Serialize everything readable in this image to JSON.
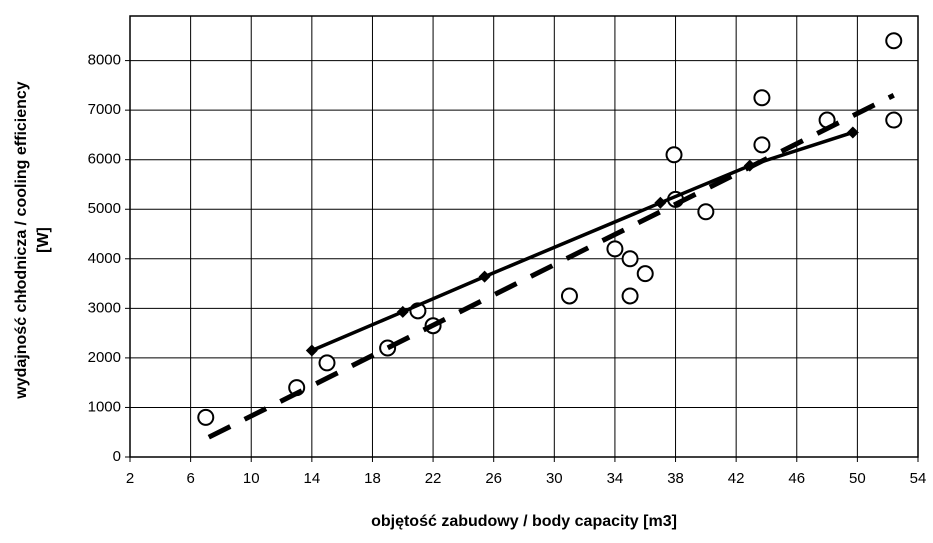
{
  "chart_data": {
    "type": "scatter",
    "xlabel": "objętość zabudowy / body capacity [m3]",
    "ylabel": [
      "wydajność chłodnicza / cooling efficiency",
      "[W]"
    ],
    "xlim": [
      2,
      54
    ],
    "xticks": [
      2,
      6,
      10,
      14,
      18,
      22,
      26,
      30,
      34,
      38,
      42,
      46,
      50,
      54
    ],
    "ylim": [
      0,
      8900
    ],
    "yticks": [
      0,
      1000,
      2000,
      3000,
      4000,
      5000,
      6000,
      7000,
      8000
    ],
    "grid": true,
    "series": [
      {
        "marker": "circle",
        "line": "none",
        "color": "#000000",
        "x": [
          7,
          13,
          15,
          19,
          21,
          22,
          31,
          34,
          35,
          35,
          36,
          37.9,
          38,
          40,
          43.7,
          43.7,
          48,
          52.4,
          52.4
        ],
        "values": [
          800,
          1400,
          1900,
          2200,
          2950,
          2650,
          3250,
          4200,
          4000,
          3250,
          3700,
          6100,
          5200,
          4950,
          7250,
          6300,
          6800,
          8400,
          6800
        ]
      },
      {
        "marker": "diamond",
        "line": "solid",
        "color": "#000000",
        "x": [
          14,
          20,
          25.4,
          37,
          42.9,
          49.7
        ],
        "values": [
          2150,
          2930,
          3640,
          5130,
          5880,
          6550
        ]
      },
      {
        "marker": "none",
        "line": "dashed",
        "color": "#000000",
        "x": [
          7.2,
          52.4
        ],
        "values": [
          400,
          7300
        ]
      }
    ]
  }
}
